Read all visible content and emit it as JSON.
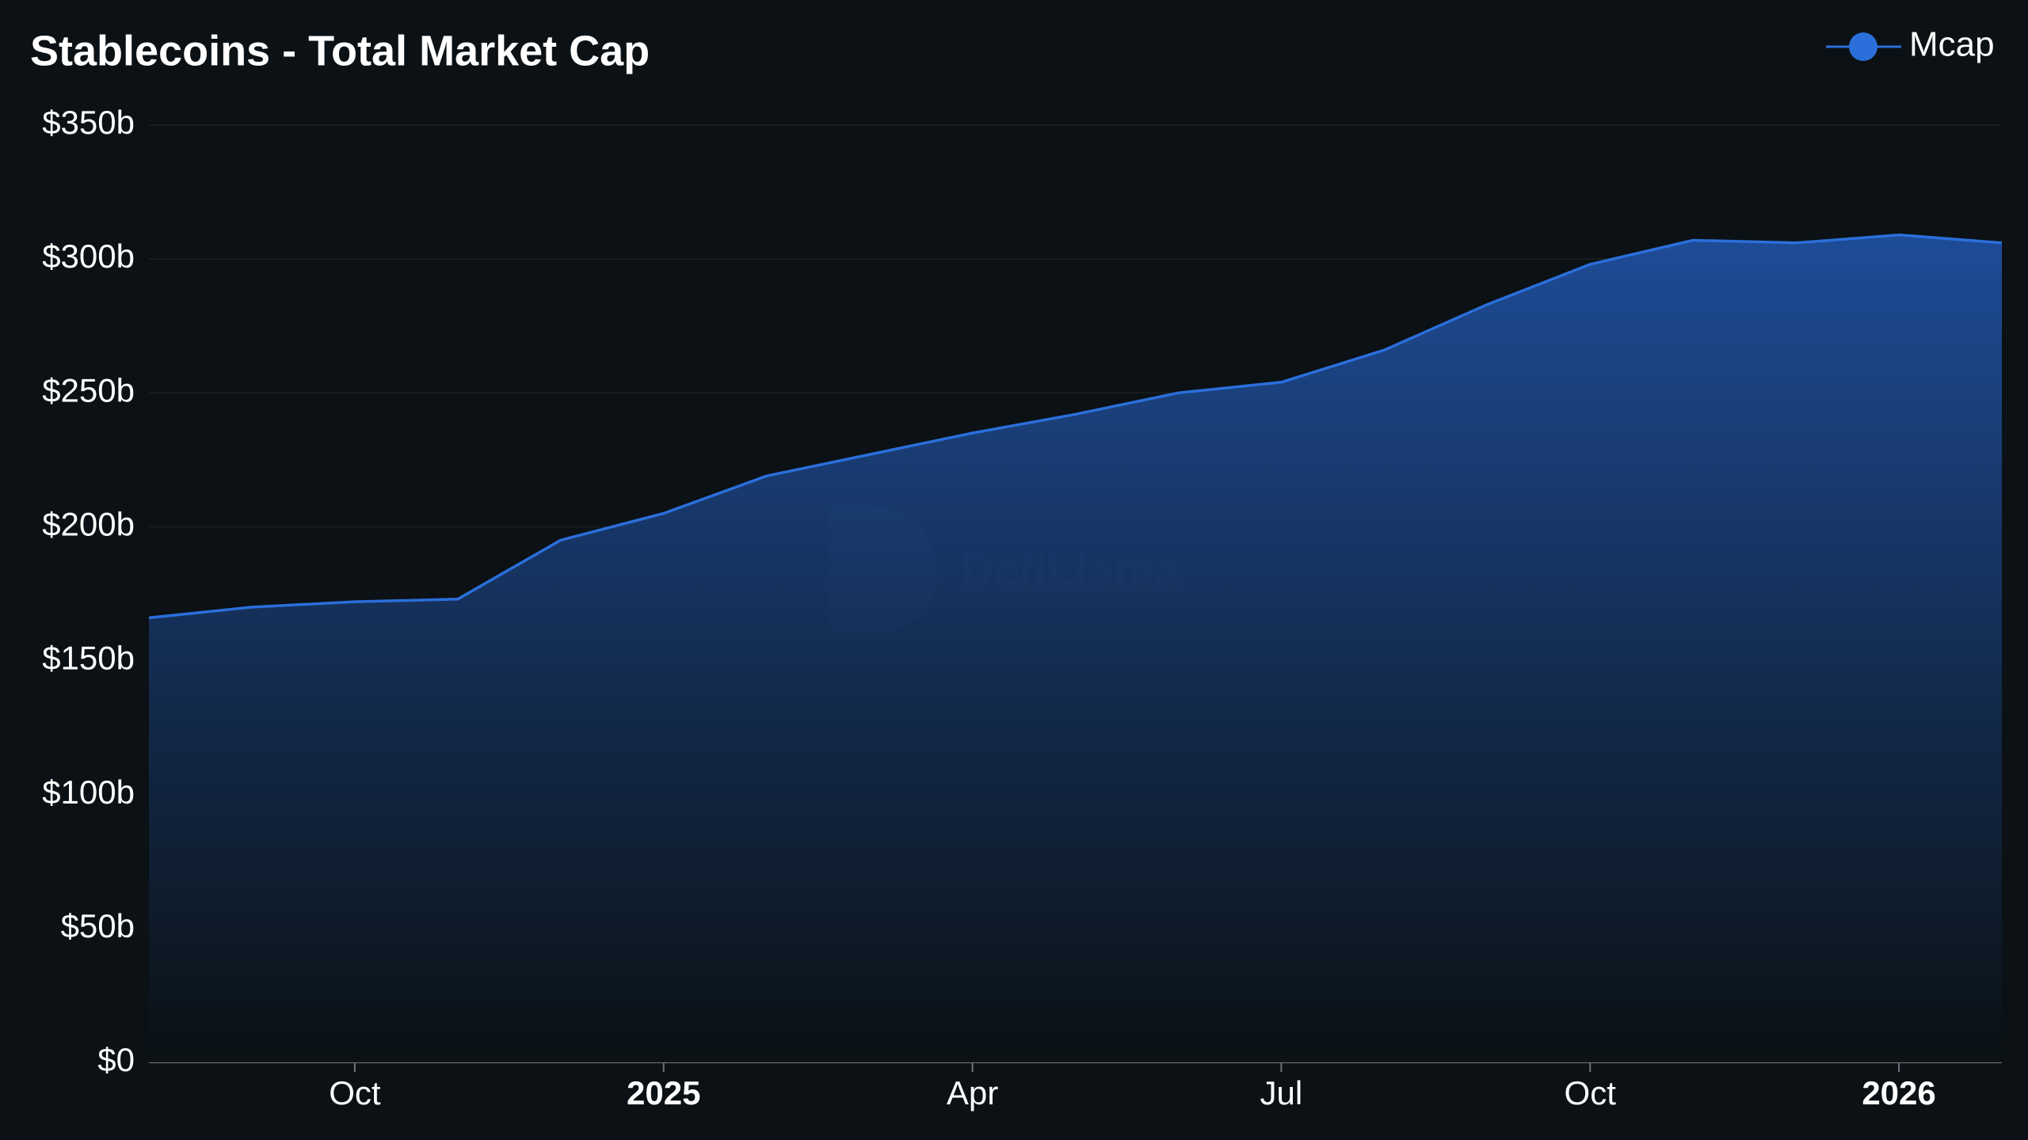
{
  "chart_data": {
    "type": "area",
    "title": "Stablecoins - Total Market Cap",
    "watermark": "DefiLlama",
    "x": [
      "2024-08",
      "2024-09",
      "2024-10",
      "2024-11",
      "2024-12",
      "2025-01",
      "2025-02",
      "2025-03",
      "2025-04",
      "2025-05",
      "2025-06",
      "2025-07",
      "2025-08",
      "2025-09",
      "2025-10",
      "2025-11",
      "2025-12",
      "2026-01",
      "2026-02"
    ],
    "series": [
      {
        "name": "Mcap",
        "color": "#2b6fdb",
        "values": [
          166,
          170,
          172,
          173,
          195,
          205,
          219,
          227,
          235,
          242,
          250,
          254,
          266,
          283,
          298,
          307,
          306,
          309,
          306
        ]
      }
    ],
    "xlim": [
      "2024-08",
      "2026-02"
    ],
    "xticks": [
      {
        "value": "2024-10",
        "label": "Oct"
      },
      {
        "value": "2025-01",
        "label": "2025"
      },
      {
        "value": "2025-04",
        "label": "Apr"
      },
      {
        "value": "2025-07",
        "label": "Jul"
      },
      {
        "value": "2025-10",
        "label": "Oct"
      },
      {
        "value": "2026-01",
        "label": "2026"
      }
    ],
    "ylim": [
      0,
      350
    ],
    "yticks": [
      {
        "value": 0,
        "label": "$0"
      },
      {
        "value": 50,
        "label": "$50b"
      },
      {
        "value": 100,
        "label": "$100b"
      },
      {
        "value": 150,
        "label": "$150b"
      },
      {
        "value": 200,
        "label": "$200b"
      },
      {
        "value": 250,
        "label": "$250b"
      },
      {
        "value": 300,
        "label": "$300b"
      },
      {
        "value": 350,
        "label": "$350b"
      }
    ],
    "grid": true,
    "legend": "top-right"
  }
}
